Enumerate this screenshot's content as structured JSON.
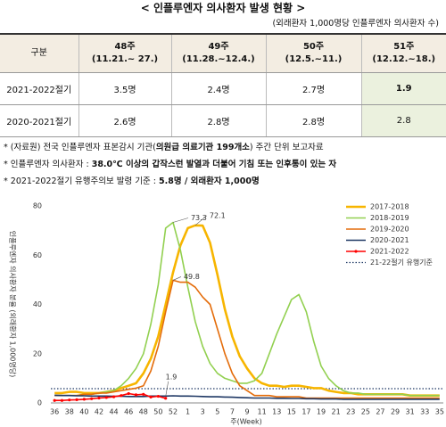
{
  "header": {
    "title": "< 인플루엔자 의사환자 발생 현황 >",
    "subtitle": "(외래환자 1,000명당 인플루엔자 의사환자 수)"
  },
  "table": {
    "header": [
      "구분",
      {
        "week": "48주",
        "range": "(11.21.~ 27.)"
      },
      {
        "week": "49주",
        "range": "(11.28.~12.4.)"
      },
      {
        "week": "50주",
        "range": "(12.5.~11.)"
      },
      {
        "week": "51주",
        "range": "(12.12.~18.)"
      }
    ],
    "rows": [
      [
        "2021-2022절기",
        "3.5명",
        "2.4명",
        "2.7명",
        "1.9"
      ],
      [
        "2020-2021절기",
        "2.6명",
        "2.8명",
        "2.8명",
        "2.8"
      ]
    ]
  },
  "notes": [
    [
      "* (자료원) 전국 인플루엔자 표본감시 기관(",
      "의원급 의료기관 199개소",
      ") 주간 단위 보고자료"
    ],
    [
      "* 인플루엔자 의사환자 : ",
      "38.0℃ 이상의 갑작스런 발열과 더불어 기침 또는 인후통이 있는 자"
    ],
    [
      "* 2021-2022절기 유행주의보 발령 기준 : ",
      "5.8명 / 외래환자 1,000명"
    ]
  ],
  "chart_data": {
    "type": "line",
    "x_label": "주(Week)",
    "y_label": "인플루엔자 의사환자 분율 (외래환자 1,000명당)",
    "categories": [
      36,
      null,
      38,
      null,
      40,
      null,
      42,
      null,
      44,
      null,
      46,
      null,
      48,
      null,
      50,
      null,
      52,
      null,
      1,
      null,
      3,
      null,
      5,
      null,
      7,
      null,
      9,
      null,
      11,
      null,
      13,
      null,
      15,
      null,
      17,
      null,
      19,
      null,
      21,
      null,
      23,
      null,
      25,
      null,
      27,
      null,
      29,
      null,
      31,
      null,
      33,
      null,
      35
    ],
    "ylim": [
      0,
      80
    ],
    "yticks": [
      0,
      20,
      40,
      60,
      80
    ],
    "legend": "upper right",
    "series": [
      {
        "name": "2017-2018",
        "color": "#f7b500",
        "values": [
          4,
          4,
          4.5,
          4.5,
          4,
          4,
          4,
          4.5,
          5,
          6,
          7,
          8,
          12,
          18,
          27,
          40,
          53,
          64,
          71,
          72.1,
          72,
          65,
          52,
          38,
          27,
          19,
          14,
          10,
          8,
          7,
          7,
          6.5,
          7,
          7,
          6.5,
          6,
          6,
          5,
          4.5,
          4,
          4,
          3.5,
          3.5,
          3.5,
          3.5,
          3.5,
          3.5,
          3.5,
          3,
          3,
          3,
          3,
          3
        ]
      },
      {
        "name": "2018-2019",
        "color": "#92d050",
        "values": [
          3,
          3,
          3,
          3,
          3.5,
          3.5,
          4,
          4.5,
          5,
          7,
          10,
          14,
          20,
          32,
          48,
          71,
          73.3,
          62,
          47,
          33,
          23,
          16,
          12,
          10,
          9,
          8,
          8,
          9,
          12,
          20,
          28,
          35,
          42,
          44,
          37,
          25,
          15,
          10,
          7,
          5,
          4,
          4,
          3.5,
          3.5,
          3.5,
          3.5,
          3.5,
          3.5,
          3,
          3,
          3,
          3,
          3
        ]
      },
      {
        "name": "2019-2020",
        "color": "#e46c0a",
        "values": [
          3,
          3,
          3,
          3,
          3.5,
          3.5,
          4,
          4,
          4.5,
          5,
          5.5,
          6,
          7,
          13,
          23,
          37,
          49.8,
          49,
          49,
          47,
          43,
          40,
          30,
          20,
          12,
          7,
          5,
          3,
          3,
          3,
          2.5,
          2.5,
          2.5,
          2.5,
          2,
          2,
          2,
          2,
          2,
          2,
          2,
          2,
          2,
          2,
          2,
          2,
          2,
          2,
          2,
          2,
          2,
          2,
          2
        ]
      },
      {
        "name": "2020-2021",
        "color": "#1f3864",
        "values": [
          3.1,
          3,
          3,
          2.9,
          2.9,
          2.8,
          2.8,
          2.8,
          2.7,
          2.7,
          2.6,
          2.6,
          2.6,
          2.8,
          2.8,
          2.8,
          2.9,
          2.8,
          2.8,
          2.7,
          2.6,
          2.5,
          2.5,
          2.4,
          2.3,
          2.2,
          2.1,
          2,
          2,
          2,
          1.9,
          1.9,
          1.8,
          1.8,
          1.7,
          1.7,
          1.6,
          1.6,
          1.6,
          1.5,
          1.5,
          1.5,
          1.5,
          1.5,
          1.5,
          1.5,
          1.5,
          1.5,
          1.5,
          1.5,
          1.5,
          1.5,
          1.5
        ]
      },
      {
        "name": "2021-2022",
        "color": "#ff0000",
        "values": [
          1,
          1,
          1.2,
          1.3,
          1.5,
          1.7,
          2,
          2.2,
          2.5,
          3,
          3.8,
          3.3,
          3.5,
          2.4,
          2.7,
          1.9,
          null,
          null,
          null,
          null,
          null,
          null,
          null,
          null,
          null,
          null,
          null,
          null,
          null,
          null,
          null,
          null,
          null,
          null,
          null,
          null,
          null,
          null,
          null,
          null,
          null,
          null,
          null,
          null,
          null,
          null,
          null,
          null,
          null,
          null,
          null,
          null,
          null
        ]
      }
    ],
    "threshold": {
      "name": "21-22절기 유행기준",
      "value": 5.8,
      "color": "#1f3864"
    }
  }
}
